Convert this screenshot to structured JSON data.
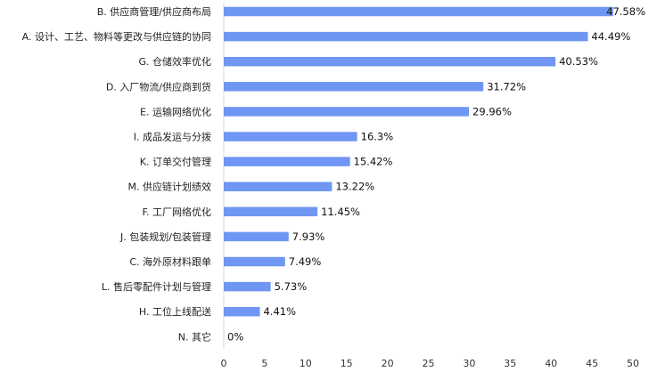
{
  "chart_data": {
    "type": "bar",
    "orientation": "horizontal",
    "title": "",
    "xlabel": "",
    "ylabel": "",
    "xlim": [
      0,
      50
    ],
    "x_ticks": [
      0,
      5,
      10,
      15,
      20,
      25,
      30,
      35,
      40,
      45,
      50
    ],
    "grid": false,
    "legend": "none",
    "bar_color": "#6f96f2",
    "categories": [
      "B. 供应商管理/供应商布局",
      "A. 设计、工艺、物料等更改与供应链的协同",
      "G. 仓储效率优化",
      "D. 入厂物流/供应商到货",
      "E. 运输网络优化",
      "I. 成品发运与分拨",
      "K. 订单交付管理",
      "M. 供应链计划绩效",
      "F. 工厂网络优化",
      "J. 包装规划/包装管理",
      "C. 海外原材料跟单",
      "L. 售后零配件计划与管理",
      "H. 工位上线配送",
      "N. 其它"
    ],
    "values": [
      47.58,
      44.49,
      40.53,
      31.72,
      29.96,
      16.3,
      15.42,
      13.22,
      11.45,
      7.93,
      7.49,
      5.73,
      4.41,
      0
    ],
    "value_labels": [
      "47.58%",
      "44.49%",
      "40.53%",
      "31.72%",
      "29.96%",
      "16.3%",
      "15.42%",
      "13.22%",
      "11.45%",
      "7.93%",
      "7.49%",
      "5.73%",
      "4.41%",
      "0%"
    ]
  }
}
